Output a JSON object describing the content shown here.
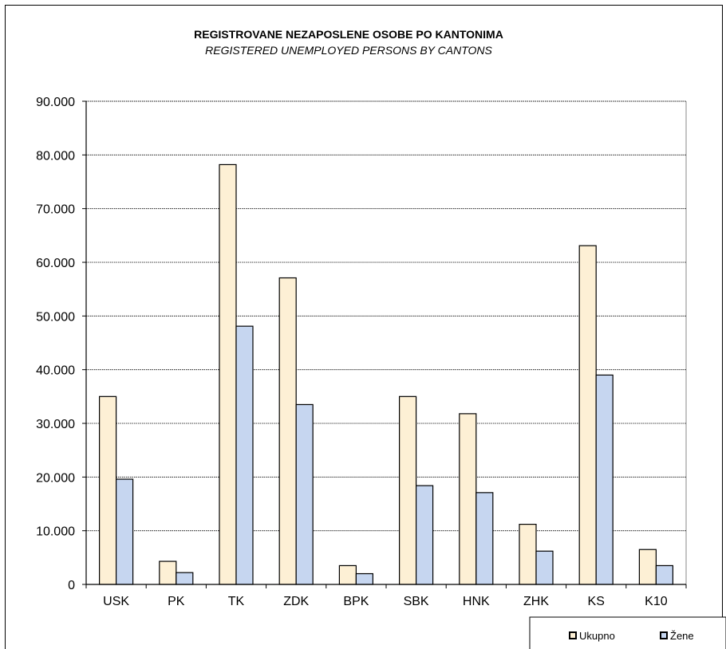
{
  "chart_data": {
    "type": "bar",
    "title": "REGISTROVANE NEZAPOSLENE OSOBE PO KANTONIMA",
    "subtitle": "REGISTERED UNEMPLOYED PERSONS BY CANTONS",
    "xlabel": "",
    "ylabel": "",
    "categories": [
      "USK",
      "PK",
      "TK",
      "ZDK",
      "BPK",
      "SBK",
      "HNK",
      "ZHK",
      "KS",
      "K10"
    ],
    "series": [
      {
        "name": "Ukupno",
        "color": "#fdf0d5",
        "values": [
          35000,
          4300,
          78200,
          57100,
          3500,
          35000,
          31800,
          11200,
          63100,
          6500
        ]
      },
      {
        "name": "Žene",
        "color": "#c6d6f0",
        "values": [
          19600,
          2200,
          48100,
          33500,
          2000,
          18400,
          17100,
          6200,
          39000,
          3500
        ]
      }
    ],
    "ylim": [
      0,
      90000
    ],
    "yticks": [
      0,
      10000,
      20000,
      30000,
      40000,
      50000,
      60000,
      70000,
      80000,
      90000
    ],
    "ytick_labels": [
      "0",
      "10.000",
      "20.000",
      "30.000",
      "40.000",
      "50.000",
      "60.000",
      "70.000",
      "80.000",
      "90.000"
    ],
    "grid": true,
    "legend_position": "bottom-right"
  }
}
